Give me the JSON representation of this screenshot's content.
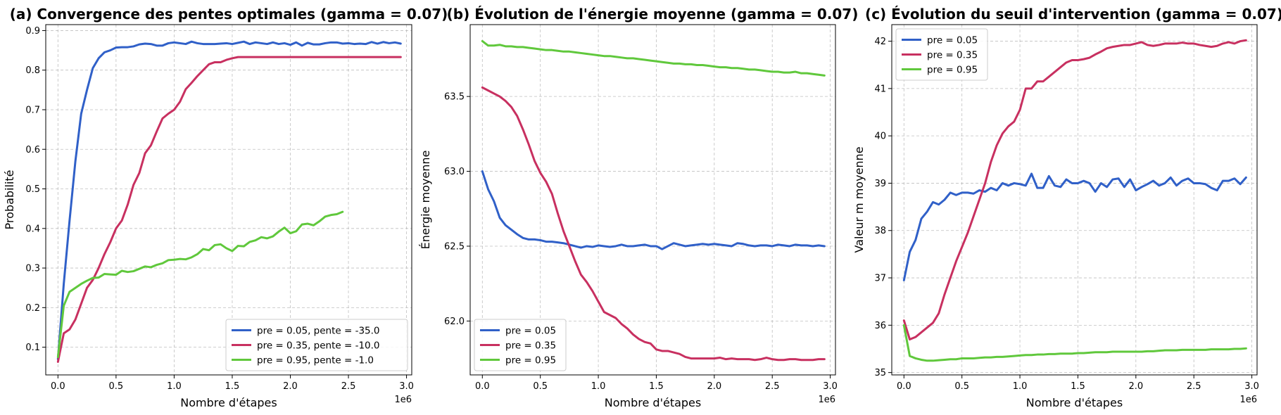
{
  "chart_data": [
    {
      "type": "line",
      "title": "(a) Convergence des pentes optimales (gamma = 0.07)",
      "xlabel": "Nombre d'étapes",
      "ylabel": "Probabilité",
      "x_offset_text": "1e6",
      "xlim": [
        -0.105,
        3.045
      ],
      "ylim": [
        0.03,
        0.915
      ],
      "xticks": [
        0.0,
        0.5,
        1.0,
        1.5,
        2.0,
        2.5,
        3.0
      ],
      "xtick_labels": [
        "0.0",
        "0.5",
        "1.0",
        "1.5",
        "2.0",
        "2.5",
        "3.0"
      ],
      "yticks": [
        0.1,
        0.2,
        0.3,
        0.4,
        0.5,
        0.6,
        0.7,
        0.8,
        0.9
      ],
      "ytick_labels": [
        "0.1",
        "0.2",
        "0.3",
        "0.4",
        "0.5",
        "0.6",
        "0.7",
        "0.8",
        "0.9"
      ],
      "grid": true,
      "legend_position": "bottom-right",
      "x": [
        0.0,
        0.05,
        0.1,
        0.15,
        0.2,
        0.25,
        0.3,
        0.35,
        0.4,
        0.45,
        0.5,
        0.55,
        0.6,
        0.65,
        0.7,
        0.75,
        0.8,
        0.85,
        0.9,
        0.95,
        1.0,
        1.05,
        1.1,
        1.15,
        1.2,
        1.25,
        1.3,
        1.35,
        1.4,
        1.45,
        1.5,
        1.55,
        1.6,
        1.65,
        1.7,
        1.75,
        1.8,
        1.85,
        1.9,
        1.95,
        2.0,
        2.05,
        2.1,
        2.15,
        2.2,
        2.25,
        2.3,
        2.35,
        2.4,
        2.45,
        2.5,
        2.55,
        2.6,
        2.65,
        2.7,
        2.75,
        2.8,
        2.85,
        2.9,
        2.95
      ],
      "series": [
        {
          "name": "pre = 0.05, pente = -35.0",
          "color": "#3060c8",
          "values": [
            0.07,
            0.26,
            0.42,
            0.57,
            0.69,
            0.75,
            0.805,
            0.83,
            0.845,
            0.85,
            0.857,
            0.858,
            0.858,
            0.86,
            0.865,
            0.867,
            0.866,
            0.862,
            0.862,
            0.868,
            0.87,
            0.868,
            0.866,
            0.872,
            0.868,
            0.866,
            0.866,
            0.866,
            0.867,
            0.868,
            0.866,
            0.869,
            0.872,
            0.866,
            0.87,
            0.868,
            0.866,
            0.87,
            0.866,
            0.868,
            0.864,
            0.87,
            0.862,
            0.869,
            0.865,
            0.865,
            0.868,
            0.87,
            0.87,
            0.867,
            0.868,
            0.866,
            0.867,
            0.866,
            0.871,
            0.867,
            0.871,
            0.868,
            0.87,
            0.867
          ]
        },
        {
          "name": "pre = 0.35, pente = -10.0",
          "color": "#c83060",
          "values": [
            0.063,
            0.135,
            0.145,
            0.17,
            0.21,
            0.25,
            0.27,
            0.3,
            0.335,
            0.365,
            0.4,
            0.42,
            0.46,
            0.51,
            0.54,
            0.59,
            0.61,
            0.645,
            0.678,
            0.69,
            0.7,
            0.72,
            0.752,
            0.768,
            0.785,
            0.8,
            0.815,
            0.82,
            0.82,
            0.826,
            0.83,
            0.833,
            0.833,
            0.833,
            0.833,
            0.833,
            0.833,
            0.833,
            0.833,
            0.833,
            0.833,
            0.833,
            0.833,
            0.833,
            0.833,
            0.833,
            0.833,
            0.833,
            0.833,
            0.833,
            0.833,
            0.833,
            0.833,
            0.833,
            0.833,
            0.833,
            0.833,
            0.833,
            0.833,
            0.833
          ]
        },
        {
          "name": "pre = 0.95, pente = -1.0",
          "color": "#60c83c",
          "values": [
            0.075,
            0.205,
            0.24,
            0.25,
            0.26,
            0.268,
            0.275,
            0.276,
            0.285,
            0.284,
            0.283,
            0.293,
            0.29,
            0.292,
            0.298,
            0.304,
            0.302,
            0.308,
            0.312,
            0.32,
            0.321,
            0.323,
            0.322,
            0.327,
            0.335,
            0.348,
            0.345,
            0.358,
            0.36,
            0.35,
            0.343,
            0.356,
            0.355,
            0.366,
            0.37,
            0.378,
            0.375,
            0.38,
            0.392,
            0.402,
            0.388,
            0.393,
            0.41,
            0.412,
            0.408,
            0.418,
            0.43,
            0.434,
            0.436,
            0.442,
            null,
            null,
            null,
            null,
            null,
            null,
            null,
            null,
            null,
            null
          ]
        }
      ]
    },
    {
      "type": "line",
      "title": "(b) Évolution de l'énergie moyenne (gamma = 0.07)",
      "xlabel": "Nombre d'étapes",
      "ylabel": "Énergie moyenne",
      "x_offset_text": "1e6",
      "xlim": [
        -0.105,
        3.045
      ],
      "ylim": [
        61.64,
        63.98
      ],
      "xticks": [
        0.0,
        0.5,
        1.0,
        1.5,
        2.0,
        2.5,
        3.0
      ],
      "xtick_labels": [
        "0.0",
        "0.5",
        "1.0",
        "1.5",
        "2.0",
        "2.5",
        "3.0"
      ],
      "yticks": [
        62.0,
        62.5,
        63.0,
        63.5
      ],
      "ytick_labels": [
        "62.0",
        "62.5",
        "63.0",
        "63.5"
      ],
      "grid": true,
      "legend_position": "bottom-left",
      "x": [
        0.0,
        0.05,
        0.1,
        0.15,
        0.2,
        0.25,
        0.3,
        0.35,
        0.4,
        0.45,
        0.5,
        0.55,
        0.6,
        0.65,
        0.7,
        0.75,
        0.8,
        0.85,
        0.9,
        0.95,
        1.0,
        1.05,
        1.1,
        1.15,
        1.2,
        1.25,
        1.3,
        1.35,
        1.4,
        1.45,
        1.5,
        1.55,
        1.6,
        1.65,
        1.7,
        1.75,
        1.8,
        1.85,
        1.9,
        1.95,
        2.0,
        2.05,
        2.1,
        2.15,
        2.2,
        2.25,
        2.3,
        2.35,
        2.4,
        2.45,
        2.5,
        2.55,
        2.6,
        2.65,
        2.7,
        2.75,
        2.8,
        2.85,
        2.9,
        2.95
      ],
      "series": [
        {
          "name": "pre = 0.05",
          "color": "#3060c8",
          "values": [
            63.0,
            62.88,
            62.8,
            62.69,
            62.64,
            62.61,
            62.58,
            62.555,
            62.545,
            62.545,
            62.54,
            62.53,
            62.53,
            62.525,
            62.52,
            62.51,
            62.5,
            62.49,
            62.5,
            62.495,
            62.505,
            62.5,
            62.495,
            62.5,
            62.51,
            62.5,
            62.5,
            62.505,
            62.51,
            62.5,
            62.5,
            62.48,
            62.5,
            62.52,
            62.51,
            62.5,
            62.505,
            62.51,
            62.515,
            62.51,
            62.515,
            62.51,
            62.505,
            62.5,
            62.52,
            62.515,
            62.505,
            62.5,
            62.505,
            62.505,
            62.5,
            62.51,
            62.505,
            62.5,
            62.51,
            62.505,
            62.505,
            62.5,
            62.505,
            62.5
          ]
        },
        {
          "name": "pre = 0.35",
          "color": "#c83060",
          "values": [
            63.56,
            63.54,
            63.52,
            63.5,
            63.47,
            63.43,
            63.37,
            63.28,
            63.18,
            63.07,
            62.99,
            62.93,
            62.85,
            62.72,
            62.6,
            62.5,
            62.4,
            62.31,
            62.26,
            62.2,
            62.13,
            62.06,
            62.04,
            62.02,
            61.98,
            61.95,
            61.91,
            61.88,
            61.86,
            61.85,
            61.81,
            61.8,
            61.8,
            61.79,
            61.78,
            61.76,
            61.75,
            61.75,
            61.75,
            61.75,
            61.75,
            61.755,
            61.745,
            61.75,
            61.745,
            61.745,
            61.745,
            61.74,
            61.745,
            61.755,
            61.745,
            61.74,
            61.74,
            61.745,
            61.745,
            61.74,
            61.74,
            61.74,
            61.745,
            61.745
          ]
        },
        {
          "name": "pre = 0.95",
          "color": "#60c83c",
          "values": [
            63.87,
            63.84,
            63.84,
            63.845,
            63.835,
            63.835,
            63.83,
            63.83,
            63.825,
            63.82,
            63.815,
            63.81,
            63.81,
            63.805,
            63.8,
            63.8,
            63.795,
            63.79,
            63.785,
            63.78,
            63.775,
            63.77,
            63.77,
            63.765,
            63.76,
            63.755,
            63.755,
            63.75,
            63.745,
            63.74,
            63.735,
            63.73,
            63.725,
            63.72,
            63.72,
            63.715,
            63.715,
            63.71,
            63.71,
            63.705,
            63.7,
            63.695,
            63.695,
            63.69,
            63.69,
            63.685,
            63.68,
            63.68,
            63.675,
            63.67,
            63.665,
            63.665,
            63.66,
            63.66,
            63.665,
            63.655,
            63.655,
            63.65,
            63.645,
            63.64
          ]
        }
      ]
    },
    {
      "type": "line",
      "title": "(c) Évolution du seuil d'intervention (gamma = 0.07)",
      "xlabel": "Nombre d'étapes",
      "ylabel": "Valeur m moyenne",
      "x_offset_text": "1e6",
      "xlim": [
        -0.105,
        3.045
      ],
      "ylim": [
        34.95,
        42.35
      ],
      "xticks": [
        0.0,
        0.5,
        1.0,
        1.5,
        2.0,
        2.5,
        3.0
      ],
      "xtick_labels": [
        "0.0",
        "0.5",
        "1.0",
        "1.5",
        "2.0",
        "2.5",
        "3.0"
      ],
      "yticks": [
        35,
        36,
        37,
        38,
        39,
        40,
        41,
        42
      ],
      "ytick_labels": [
        "35",
        "36",
        "37",
        "38",
        "39",
        "40",
        "41",
        "42"
      ],
      "grid": true,
      "legend_position": "top-left",
      "x": [
        0.0,
        0.05,
        0.1,
        0.15,
        0.2,
        0.25,
        0.3,
        0.35,
        0.4,
        0.45,
        0.5,
        0.55,
        0.6,
        0.65,
        0.7,
        0.75,
        0.8,
        0.85,
        0.9,
        0.95,
        1.0,
        1.05,
        1.1,
        1.15,
        1.2,
        1.25,
        1.3,
        1.35,
        1.4,
        1.45,
        1.5,
        1.55,
        1.6,
        1.65,
        1.7,
        1.75,
        1.8,
        1.85,
        1.9,
        1.95,
        2.0,
        2.05,
        2.1,
        2.15,
        2.2,
        2.25,
        2.3,
        2.35,
        2.4,
        2.45,
        2.5,
        2.55,
        2.6,
        2.65,
        2.7,
        2.75,
        2.8,
        2.85,
        2.9,
        2.95
      ],
      "series": [
        {
          "name": "pre = 0.05",
          "color": "#3060c8",
          "values": [
            36.95,
            37.55,
            37.8,
            38.25,
            38.4,
            38.6,
            38.55,
            38.65,
            38.8,
            38.75,
            38.8,
            38.8,
            38.78,
            38.85,
            38.82,
            38.9,
            38.85,
            39.0,
            38.95,
            39.0,
            38.98,
            38.95,
            39.2,
            38.9,
            38.9,
            39.15,
            38.95,
            38.92,
            39.08,
            39.0,
            39.0,
            39.05,
            39.0,
            38.82,
            39.0,
            38.92,
            39.08,
            39.1,
            38.92,
            39.08,
            38.85,
            38.92,
            38.98,
            39.05,
            38.95,
            39.0,
            39.12,
            38.95,
            39.05,
            39.1,
            39.0,
            39.0,
            38.98,
            38.9,
            38.85,
            39.05,
            39.05,
            39.1,
            38.98,
            39.12
          ]
        },
        {
          "name": "pre = 0.35",
          "color": "#c83060",
          "values": [
            36.1,
            35.7,
            35.75,
            35.85,
            35.95,
            36.05,
            36.25,
            36.65,
            37.0,
            37.35,
            37.65,
            37.95,
            38.3,
            38.65,
            39.0,
            39.45,
            39.8,
            40.05,
            40.2,
            40.3,
            40.55,
            41.0,
            41.0,
            41.15,
            41.15,
            41.25,
            41.35,
            41.45,
            41.55,
            41.6,
            41.6,
            41.62,
            41.65,
            41.72,
            41.78,
            41.85,
            41.88,
            41.9,
            41.92,
            41.92,
            41.95,
            41.98,
            41.92,
            41.9,
            41.92,
            41.95,
            41.95,
            41.95,
            41.97,
            41.95,
            41.95,
            41.92,
            41.9,
            41.88,
            41.9,
            41.95,
            41.98,
            41.95,
            42.0,
            42.02
          ]
        },
        {
          "name": "pre = 0.95",
          "color": "#60c83c",
          "values": [
            36.0,
            35.35,
            35.3,
            35.27,
            35.25,
            35.25,
            35.26,
            35.27,
            35.28,
            35.28,
            35.3,
            35.3,
            35.3,
            35.31,
            35.32,
            35.32,
            35.33,
            35.33,
            35.34,
            35.35,
            35.36,
            35.37,
            35.37,
            35.38,
            35.38,
            35.39,
            35.39,
            35.4,
            35.4,
            35.4,
            35.41,
            35.41,
            35.42,
            35.43,
            35.43,
            35.43,
            35.44,
            35.44,
            35.44,
            35.44,
            35.44,
            35.44,
            35.45,
            35.45,
            35.46,
            35.47,
            35.47,
            35.47,
            35.48,
            35.48,
            35.48,
            35.48,
            35.48,
            35.49,
            35.49,
            35.49,
            35.49,
            35.5,
            35.5,
            35.51
          ]
        }
      ]
    }
  ]
}
